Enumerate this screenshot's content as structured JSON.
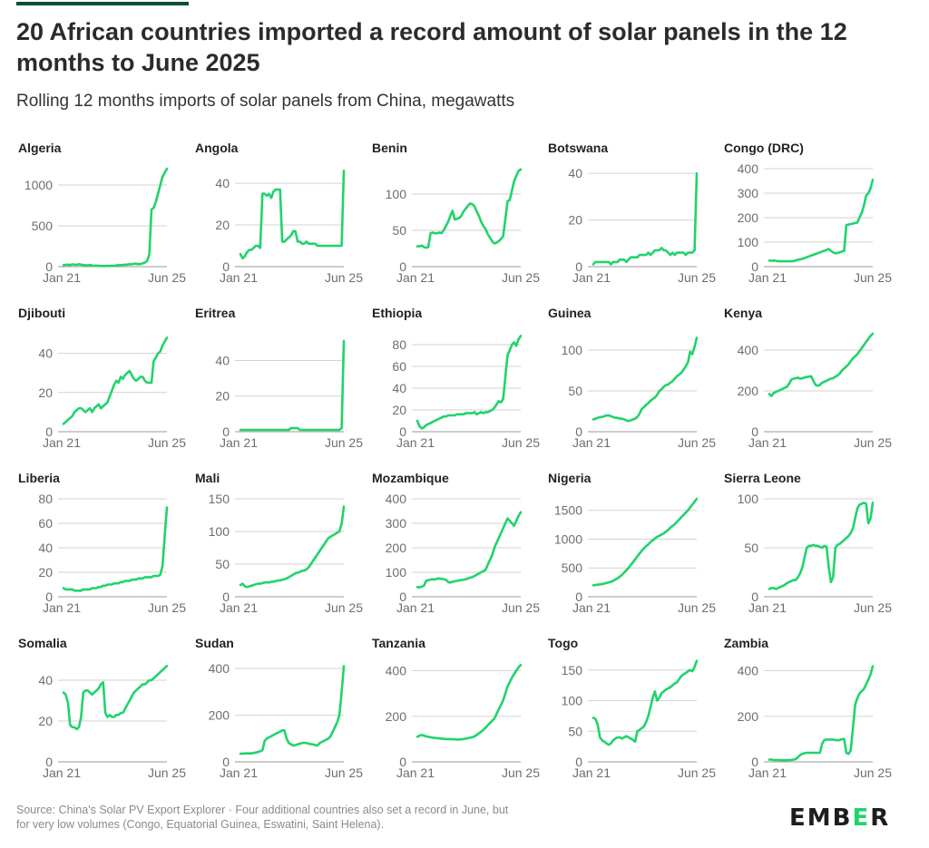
{
  "title": "20 African countries imported a record amount of solar panels in the 12 months to June 2025",
  "subtitle": "Rolling 12 months imports of solar panels from China, megawatts",
  "source": "Source: China's Solar PV Export Explorer · Four additional countries also set a record in June, but for very low volumes (Congo, Equatorial Guinea, Eswatini, Saint Helena).",
  "logo": "EMBER",
  "colors": {
    "series": "#21d36c",
    "grid": "#d2d2d2",
    "text": "#6e6e6e",
    "logo_accent": "#21d36c"
  },
  "chart_data": [
    {
      "type": "line",
      "title": "Algeria",
      "x_labels": [
        "Jan 21",
        "Jun 25"
      ],
      "yticks": [
        0,
        500,
        1000
      ],
      "ylim": [
        0,
        1200
      ],
      "values": [
        18,
        22,
        25,
        20,
        28,
        25,
        22,
        30,
        25,
        20,
        18,
        15,
        20,
        15,
        10,
        12,
        10,
        8,
        8,
        8,
        10,
        8,
        12,
        10,
        15,
        20,
        18,
        22,
        25,
        25,
        30,
        28,
        35,
        35,
        30,
        32,
        40,
        50,
        70,
        150,
        700,
        720,
        800,
        900,
        1000,
        1100,
        1150,
        1200
      ]
    },
    {
      "type": "line",
      "title": "Angola",
      "x_labels": [
        "Jan 21",
        "Jun 25"
      ],
      "yticks": [
        0,
        20,
        40
      ],
      "ylim": [
        0,
        47
      ],
      "values": [
        6,
        4,
        5,
        7,
        8,
        8,
        9,
        10,
        10,
        9,
        35,
        35,
        34,
        35,
        33,
        36,
        37,
        37,
        37,
        12,
        12,
        13,
        14,
        15,
        17,
        17,
        12,
        12,
        11,
        11,
        12,
        11,
        11,
        11,
        11,
        10,
        10,
        10,
        10,
        10,
        10,
        10,
        10,
        10,
        10,
        10,
        10,
        46
      ]
    },
    {
      "type": "line",
      "title": "Benin",
      "x_labels": [
        "Jan 21",
        "Jun 25"
      ],
      "yticks": [
        0,
        50,
        100
      ],
      "ylim": [
        0,
        135
      ],
      "values": [
        28,
        28,
        29,
        27,
        26,
        27,
        46,
        47,
        46,
        46,
        47,
        46,
        50,
        56,
        62,
        70,
        77,
        65,
        66,
        67,
        70,
        76,
        80,
        84,
        87,
        86,
        83,
        76,
        70,
        62,
        56,
        52,
        45,
        40,
        35,
        32,
        33,
        35,
        38,
        42,
        65,
        90,
        92,
        105,
        118,
        125,
        132,
        134
      ]
    },
    {
      "type": "line",
      "title": "Botswana",
      "x_labels": [
        "Jan 21",
        "Jun 25"
      ],
      "yticks": [
        0,
        20,
        40
      ],
      "ylim": [
        0,
        42
      ],
      "values": [
        1,
        2,
        2,
        2,
        2,
        2,
        2,
        2,
        1,
        2,
        2,
        2,
        3,
        3,
        3,
        2,
        3,
        4,
        4,
        4,
        4,
        5,
        5,
        5,
        5,
        6,
        5,
        6,
        7,
        7,
        7,
        8,
        7,
        7,
        6,
        5,
        6,
        5,
        6,
        6,
        6,
        6,
        5,
        6,
        6,
        6,
        7,
        40
      ]
    },
    {
      "type": "line",
      "title": "Congo (DRC)",
      "x_labels": [
        "Jan 21",
        "Jun 25"
      ],
      "yticks": [
        0,
        100,
        200,
        300,
        400
      ],
      "ylim": [
        0,
        400
      ],
      "values": [
        25,
        24,
        25,
        24,
        22,
        22,
        22,
        22,
        22,
        22,
        22,
        23,
        25,
        28,
        30,
        32,
        35,
        38,
        42,
        45,
        48,
        52,
        55,
        58,
        62,
        65,
        68,
        72,
        65,
        58,
        55,
        56,
        58,
        62,
        65,
        170,
        172,
        174,
        176,
        178,
        180,
        200,
        220,
        250,
        290,
        300,
        320,
        355
      ]
    },
    {
      "type": "line",
      "title": "Djibouti",
      "x_labels": [
        "Jan 21",
        "Jun 25"
      ],
      "yticks": [
        0,
        20,
        40
      ],
      "ylim": [
        0,
        50
      ],
      "values": [
        4,
        5,
        6,
        7,
        8,
        10,
        11,
        12,
        12,
        11,
        10,
        11,
        12,
        10,
        12,
        13,
        14,
        12,
        13,
        14,
        15,
        18,
        21,
        24,
        26,
        25,
        28,
        27,
        29,
        30,
        31,
        29,
        27,
        26,
        27,
        28,
        28,
        26,
        25,
        25,
        25,
        36,
        38,
        40,
        41,
        44,
        46,
        48
      ]
    },
    {
      "type": "line",
      "title": "Eritrea",
      "x_labels": [
        "Jan 21",
        "Jun 25"
      ],
      "yticks": [
        0,
        20,
        40
      ],
      "ylim": [
        0,
        55
      ],
      "values": [
        1,
        1,
        1,
        1,
        1,
        1,
        1,
        1,
        1,
        1,
        1,
        1,
        1,
        1,
        1,
        1,
        1,
        1,
        1,
        1,
        1,
        1,
        1,
        2,
        2,
        2,
        2,
        1,
        1,
        1,
        1,
        1,
        1,
        1,
        1,
        1,
        1,
        1,
        1,
        1,
        1,
        1,
        1,
        1,
        1,
        1,
        2,
        51
      ]
    },
    {
      "type": "line",
      "title": "Ethiopia",
      "x_labels": [
        "Jan 21",
        "Jun 25"
      ],
      "yticks": [
        0,
        20,
        40,
        60,
        80
      ],
      "ylim": [
        0,
        90
      ],
      "values": [
        10,
        5,
        3,
        4,
        6,
        7,
        8,
        9,
        10,
        11,
        12,
        13,
        14,
        14,
        15,
        15,
        15,
        15,
        16,
        16,
        16,
        16,
        17,
        17,
        17,
        17,
        18,
        16,
        17,
        18,
        17,
        18,
        18,
        19,
        20,
        22,
        25,
        28,
        27,
        30,
        50,
        70,
        75,
        80,
        82,
        79,
        85,
        88
      ]
    },
    {
      "type": "line",
      "title": "Guinea",
      "x_labels": [
        "Jan 21",
        "Jun 25"
      ],
      "yticks": [
        0,
        50,
        100
      ],
      "ylim": [
        0,
        120
      ],
      "values": [
        15,
        16,
        17,
        18,
        18,
        19,
        20,
        20,
        19,
        18,
        17,
        17,
        16,
        16,
        15,
        14,
        13,
        14,
        15,
        16,
        18,
        22,
        28,
        30,
        33,
        35,
        38,
        40,
        42,
        45,
        50,
        52,
        55,
        57,
        58,
        60,
        62,
        65,
        68,
        70,
        72,
        76,
        80,
        85,
        98,
        95,
        104,
        115
      ]
    },
    {
      "type": "line",
      "title": "Kenya",
      "x_labels": [
        "Jan 21",
        "Jun 25"
      ],
      "yticks": [
        0,
        200,
        400
      ],
      "ylim": [
        0,
        480
      ],
      "values": [
        185,
        175,
        190,
        195,
        200,
        205,
        210,
        215,
        220,
        235,
        255,
        260,
        262,
        265,
        260,
        262,
        266,
        268,
        270,
        272,
        250,
        230,
        225,
        230,
        240,
        245,
        250,
        255,
        260,
        262,
        270,
        275,
        285,
        300,
        310,
        320,
        330,
        345,
        360,
        370,
        380,
        395,
        410,
        425,
        440,
        455,
        470,
        480
      ]
    },
    {
      "type": "line",
      "title": "Liberia",
      "x_labels": [
        "Jan 21",
        "Jun 25"
      ],
      "yticks": [
        0,
        20,
        40,
        60,
        80
      ],
      "ylim": [
        0,
        80
      ],
      "values": [
        7,
        6,
        6,
        6,
        6,
        5,
        5,
        5,
        5,
        6,
        6,
        6,
        6,
        7,
        7,
        7,
        8,
        8,
        9,
        9,
        10,
        10,
        10,
        11,
        11,
        11,
        12,
        12,
        13,
        13,
        13,
        14,
        14,
        14,
        15,
        15,
        15,
        16,
        16,
        16,
        16,
        17,
        17,
        17,
        18,
        25,
        50,
        73
      ]
    },
    {
      "type": "line",
      "title": "Mali",
      "x_labels": [
        "Jan 21",
        "Jun 25"
      ],
      "yticks": [
        0,
        50,
        100,
        150
      ],
      "ylim": [
        0,
        150
      ],
      "values": [
        18,
        20,
        16,
        15,
        16,
        17,
        18,
        19,
        20,
        20,
        21,
        22,
        22,
        22,
        23,
        23,
        24,
        25,
        25,
        26,
        27,
        28,
        30,
        32,
        34,
        36,
        37,
        38,
        40,
        40,
        42,
        45,
        50,
        55,
        60,
        65,
        70,
        75,
        80,
        85,
        90,
        92,
        94,
        96,
        98,
        100,
        112,
        138
      ]
    },
    {
      "type": "line",
      "title": "Mozambique",
      "x_labels": [
        "Jan 21",
        "Jun 25"
      ],
      "yticks": [
        0,
        100,
        200,
        300,
        400
      ],
      "ylim": [
        0,
        400
      ],
      "values": [
        40,
        38,
        42,
        45,
        65,
        68,
        70,
        72,
        70,
        74,
        75,
        73,
        72,
        70,
        60,
        58,
        62,
        63,
        65,
        67,
        68,
        70,
        72,
        75,
        78,
        80,
        85,
        90,
        95,
        100,
        105,
        110,
        130,
        150,
        170,
        200,
        220,
        240,
        260,
        280,
        300,
        320,
        310,
        300,
        290,
        310,
        330,
        345
      ]
    },
    {
      "type": "line",
      "title": "Nigeria",
      "x_labels": [
        "Jan 21",
        "Jun 25"
      ],
      "yticks": [
        0,
        500,
        1000,
        1500
      ],
      "ylim": [
        0,
        1700
      ],
      "values": [
        200,
        205,
        210,
        215,
        220,
        230,
        240,
        250,
        260,
        275,
        300,
        320,
        350,
        380,
        420,
        460,
        500,
        550,
        600,
        650,
        700,
        750,
        800,
        840,
        880,
        910,
        950,
        980,
        1010,
        1040,
        1060,
        1080,
        1100,
        1130,
        1160,
        1200,
        1230,
        1260,
        1300,
        1340,
        1380,
        1420,
        1460,
        1500,
        1550,
        1600,
        1650,
        1700
      ]
    },
    {
      "type": "line",
      "title": "Sierra Leone",
      "x_labels": [
        "Jan 21",
        "Jun 25"
      ],
      "yticks": [
        0,
        50,
        100
      ],
      "ylim": [
        0,
        100
      ],
      "values": [
        8,
        9,
        9,
        8,
        9,
        10,
        11,
        12,
        14,
        15,
        16,
        17,
        17,
        20,
        24,
        30,
        40,
        50,
        52,
        52,
        53,
        52,
        52,
        51,
        50,
        52,
        51,
        30,
        15,
        20,
        50,
        53,
        54,
        56,
        58,
        60,
        62,
        65,
        70,
        80,
        90,
        94,
        95,
        96,
        95,
        75,
        80,
        96
      ]
    },
    {
      "type": "line",
      "title": "Somalia",
      "x_labels": [
        "Jan 21",
        "Jun 25"
      ],
      "yticks": [
        0,
        20,
        40
      ],
      "ylim": [
        0,
        48
      ],
      "values": [
        34,
        33,
        29,
        18,
        17,
        17,
        16,
        17,
        22,
        34,
        35,
        35,
        34,
        33,
        34,
        35,
        36,
        38,
        39,
        24,
        22,
        23,
        22,
        22,
        23,
        23,
        24,
        24,
        26,
        28,
        30,
        32,
        34,
        35,
        36,
        37,
        38,
        38,
        39,
        40,
        40,
        41,
        42,
        43,
        44,
        45,
        46,
        47
      ]
    },
    {
      "type": "line",
      "title": "Sudan",
      "x_labels": [
        "Jan 21",
        "Jun 25"
      ],
      "yticks": [
        0,
        200,
        400
      ],
      "ylim": [
        0,
        420
      ],
      "values": [
        35,
        35,
        36,
        36,
        36,
        36,
        38,
        40,
        42,
        45,
        50,
        90,
        100,
        105,
        110,
        115,
        120,
        125,
        130,
        135,
        135,
        100,
        80,
        75,
        70,
        72,
        75,
        78,
        80,
        82,
        80,
        78,
        76,
        75,
        72,
        70,
        80,
        85,
        90,
        95,
        100,
        110,
        130,
        150,
        170,
        200,
        300,
        410
      ]
    },
    {
      "type": "line",
      "title": "Tanzania",
      "x_labels": [
        "Jan 21",
        "Jun 25"
      ],
      "yticks": [
        0,
        200,
        400
      ],
      "ylim": [
        0,
        430
      ],
      "values": [
        110,
        115,
        118,
        115,
        112,
        110,
        108,
        106,
        105,
        104,
        103,
        102,
        101,
        100,
        100,
        100,
        99,
        99,
        98,
        98,
        99,
        100,
        102,
        104,
        106,
        108,
        112,
        118,
        125,
        132,
        140,
        150,
        160,
        170,
        180,
        190,
        210,
        230,
        250,
        270,
        300,
        330,
        350,
        370,
        385,
        400,
        415,
        425
      ]
    },
    {
      "type": "line",
      "title": "Togo",
      "x_labels": [
        "Jan 21",
        "Jun 25"
      ],
      "yticks": [
        0,
        50,
        100,
        150
      ],
      "ylim": [
        0,
        160
      ],
      "values": [
        72,
        70,
        60,
        40,
        35,
        33,
        30,
        28,
        30,
        35,
        38,
        40,
        40,
        38,
        40,
        42,
        40,
        38,
        36,
        33,
        50,
        52,
        55,
        58,
        65,
        75,
        90,
        105,
        115,
        100,
        105,
        112,
        115,
        118,
        120,
        122,
        125,
        128,
        130,
        135,
        140,
        143,
        145,
        148,
        150,
        148,
        155,
        165
      ]
    },
    {
      "type": "line",
      "title": "Zambia",
      "x_labels": [
        "Jan 21",
        "Jun 25"
      ],
      "yticks": [
        0,
        200,
        400
      ],
      "ylim": [
        0,
        430
      ],
      "values": [
        10,
        10,
        8,
        8,
        8,
        7,
        7,
        7,
        7,
        8,
        8,
        10,
        12,
        20,
        30,
        35,
        38,
        40,
        40,
        40,
        40,
        40,
        40,
        40,
        80,
        95,
        98,
        98,
        98,
        98,
        95,
        95,
        95,
        100,
        100,
        40,
        35,
        50,
        150,
        250,
        280,
        300,
        310,
        320,
        340,
        360,
        385,
        420
      ]
    }
  ]
}
